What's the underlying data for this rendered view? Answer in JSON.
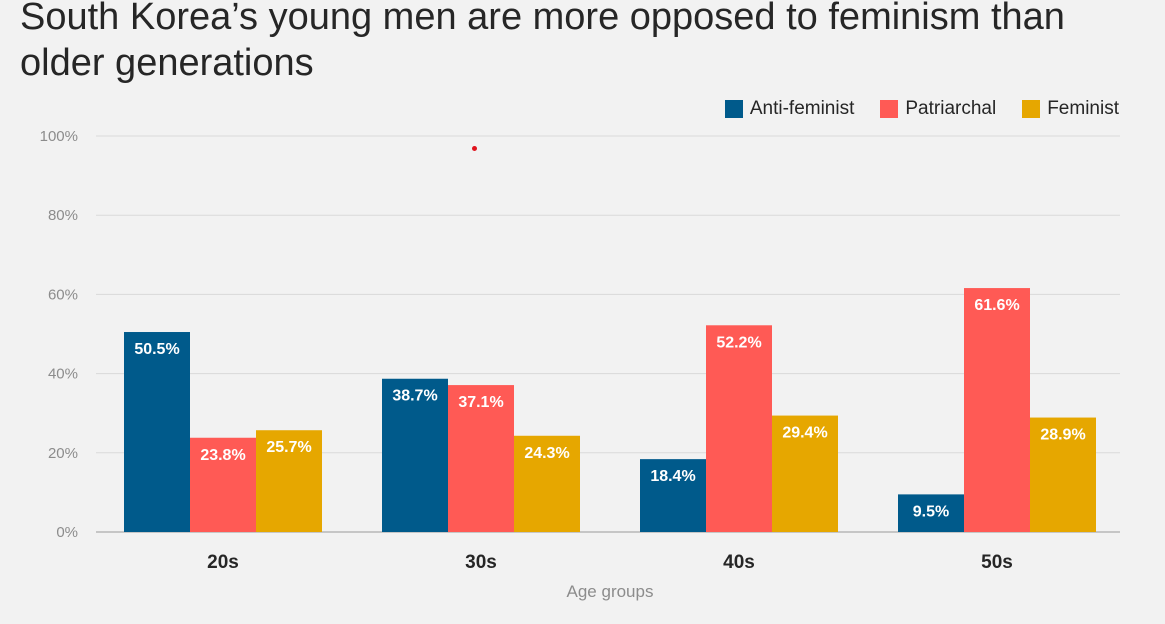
{
  "chart_data": {
    "type": "bar",
    "title": "South Korea’s young men are more opposed to feminism than older generations",
    "xlabel": "Age groups",
    "ylabel": "",
    "categories": [
      "20s",
      "30s",
      "40s",
      "50s"
    ],
    "ylim": [
      0,
      100
    ],
    "yticks": [
      0,
      20,
      40,
      60,
      80,
      100
    ],
    "ytick_labels": [
      "0%",
      "20%",
      "40%",
      "60%",
      "80%",
      "100%"
    ],
    "grid": true,
    "legend_position": "top-right",
    "series": [
      {
        "name": "Anti-feminist",
        "color": "#005a8b",
        "values": [
          50.5,
          38.7,
          18.4,
          9.5
        ],
        "labels": [
          "50.5%",
          "38.7%",
          "18.4%",
          "9.5%"
        ]
      },
      {
        "name": "Patriarchal",
        "color": "#ff5a55",
        "values": [
          23.8,
          37.1,
          52.2,
          61.6
        ],
        "labels": [
          "23.8%",
          "37.1%",
          "52.2%",
          "61.6%"
        ]
      },
      {
        "name": "Feminist",
        "color": "#e6a700",
        "values": [
          25.7,
          24.3,
          29.4,
          28.9
        ],
        "labels": [
          "25.7%",
          "24.3%",
          "29.4%",
          "28.9%"
        ]
      }
    ]
  }
}
